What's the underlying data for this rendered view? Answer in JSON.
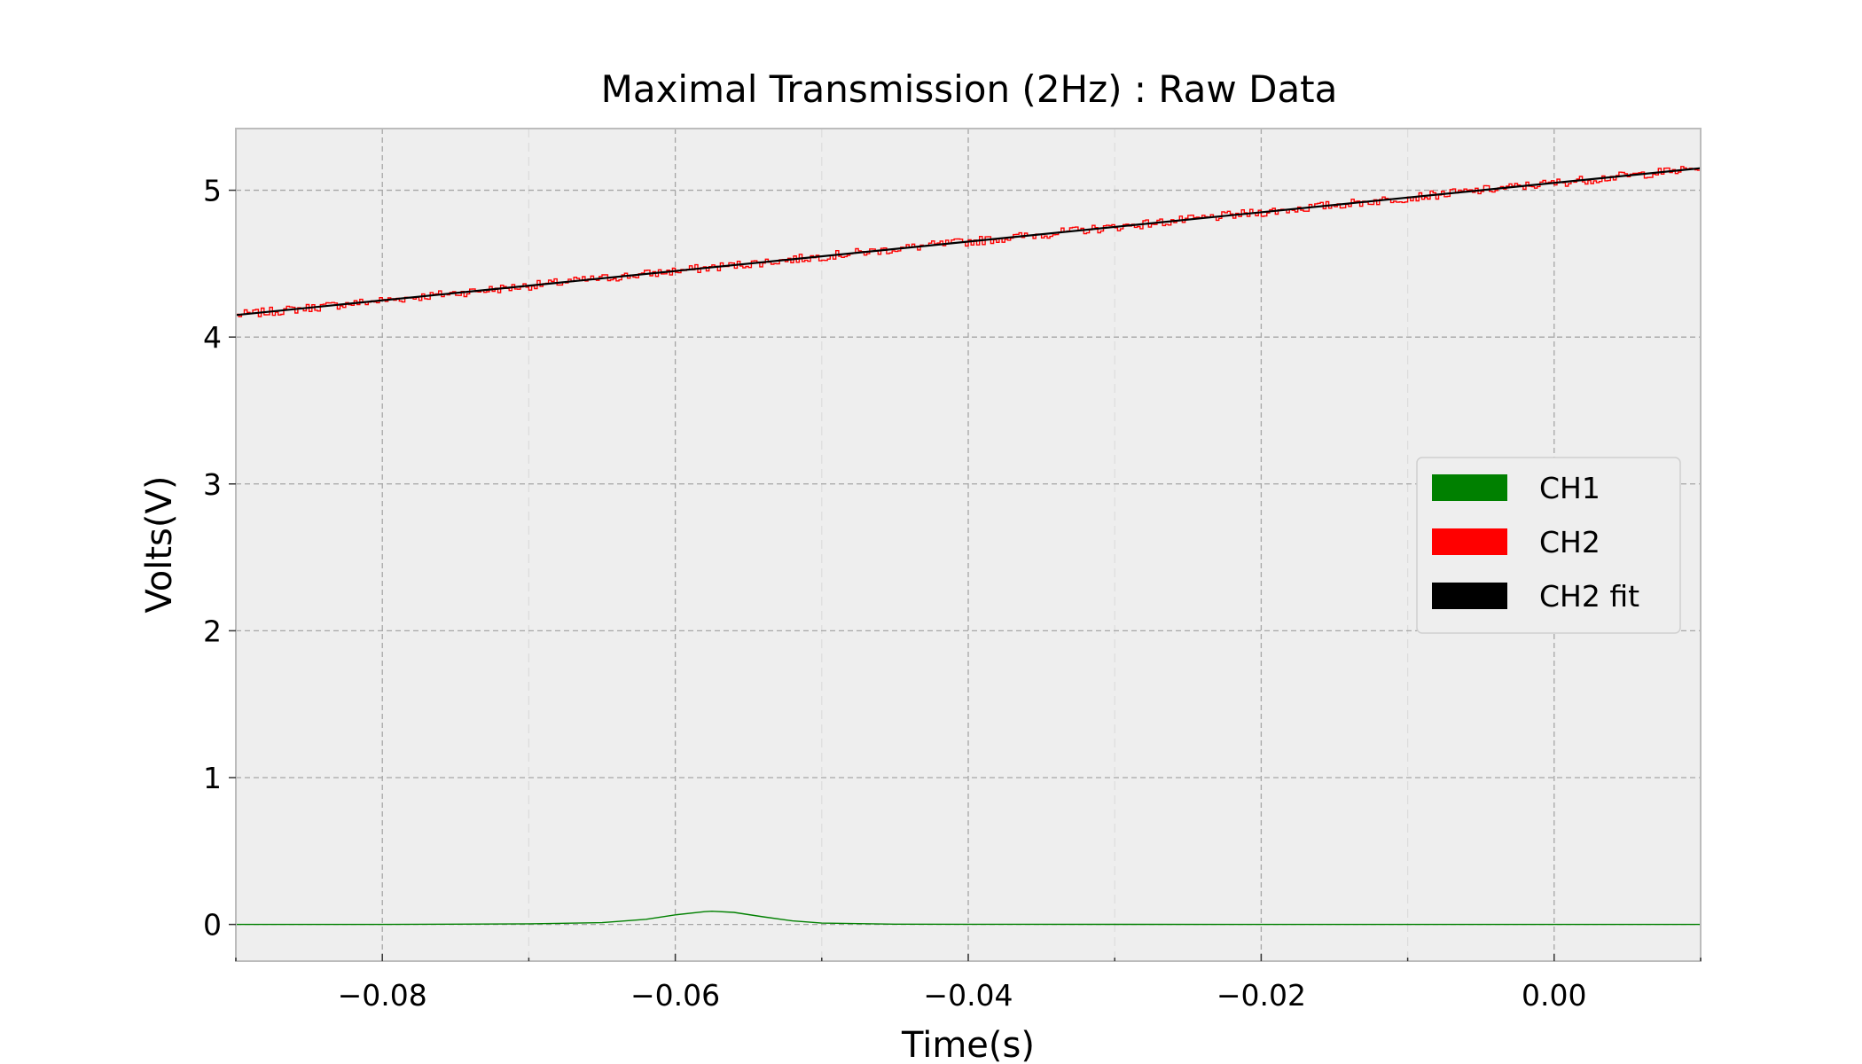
{
  "chart_data": {
    "type": "line",
    "title": "Maximal Transmission (2Hz) : Raw Data",
    "xlabel": "Time(s)",
    "ylabel": "Volts(V)",
    "xlim": [
      -0.09,
      0.01
    ],
    "ylim": [
      -0.25,
      5.42
    ],
    "xticks": [
      -0.08,
      -0.06,
      -0.04,
      -0.02,
      0.0
    ],
    "xtick_labels": [
      "−0.08",
      "−0.06",
      "−0.04",
      "−0.02",
      "0.00"
    ],
    "yticks": [
      0,
      1,
      2,
      3,
      4,
      5
    ],
    "ytick_labels": [
      "0",
      "1",
      "2",
      "3",
      "4",
      "5"
    ],
    "grid": true,
    "legend_position": "center-right",
    "series": [
      {
        "name": "CH1",
        "color": "#008000",
        "style": "peak",
        "baseline": 0.0,
        "peak_x": -0.0575,
        "peak_y": 0.09,
        "x": [
          -0.09,
          -0.08,
          -0.07,
          -0.065,
          -0.062,
          -0.06,
          -0.058,
          -0.0575,
          -0.056,
          -0.054,
          -0.052,
          -0.05,
          -0.045,
          -0.04,
          -0.02,
          0.0,
          0.01
        ],
        "y": [
          0.0,
          0.0,
          0.004,
          0.012,
          0.035,
          0.065,
          0.087,
          0.09,
          0.082,
          0.052,
          0.024,
          0.009,
          0.002,
          0.001,
          0.0,
          0.0,
          0.0
        ]
      },
      {
        "name": "CH2",
        "color": "#ff0000",
        "style": "noisy-steps",
        "x_start": -0.09,
        "x_end": 0.01,
        "y_start": 4.15,
        "y_end": 5.15,
        "noise": 0.03
      },
      {
        "name": "CH2 fit",
        "color": "#000000",
        "style": "line",
        "x": [
          -0.09,
          0.01
        ],
        "y": [
          4.15,
          5.15
        ]
      }
    ]
  }
}
